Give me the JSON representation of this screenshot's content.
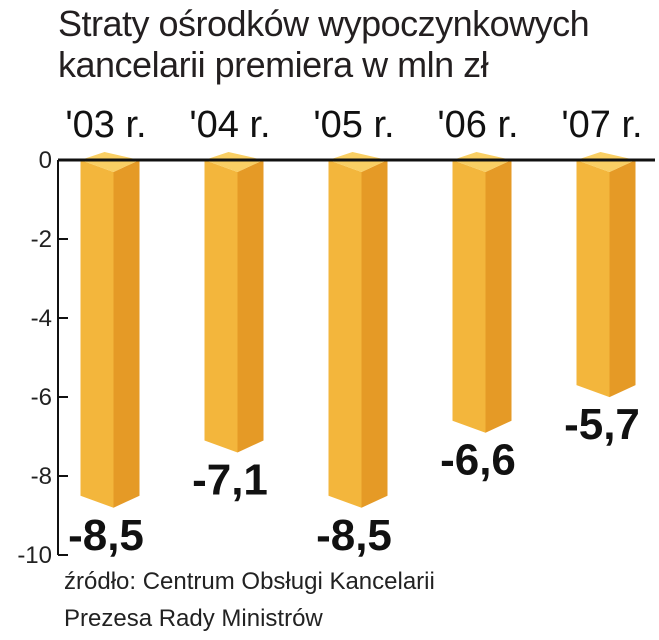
{
  "title_lines": [
    "Straty ośrodków wypoczynkowych",
    "kancelarii premiera w mln zł"
  ],
  "source_lines": [
    "źródło: Centrum Obsługi Kancelarii",
    "Prezesa Rady Ministrów"
  ],
  "colors": {
    "bar_front": "#f3b63c",
    "bar_side": "#e59a26",
    "bar_top": "#f9cf64",
    "axis": "#111111",
    "text": "#111111"
  },
  "chart_data": {
    "type": "bar",
    "title": "Straty ośrodków wypoczynkowych kancelarii premiera w mln zł",
    "categories": [
      "'03 r.",
      "'04 r.",
      "'05 r.",
      "'06 r.",
      "'07 r."
    ],
    "values": [
      -8.5,
      -7.1,
      -8.5,
      -6.6,
      -5.7
    ],
    "value_labels": [
      "-8,5",
      "-7,1",
      "-8,5",
      "-6,6",
      "-5,7"
    ],
    "y_ticks": [
      0,
      -2,
      -4,
      -6,
      -8,
      -10
    ],
    "ylim": [
      -10,
      0
    ],
    "xlabel": "",
    "ylabel": "",
    "grid": false,
    "legend": "none"
  }
}
